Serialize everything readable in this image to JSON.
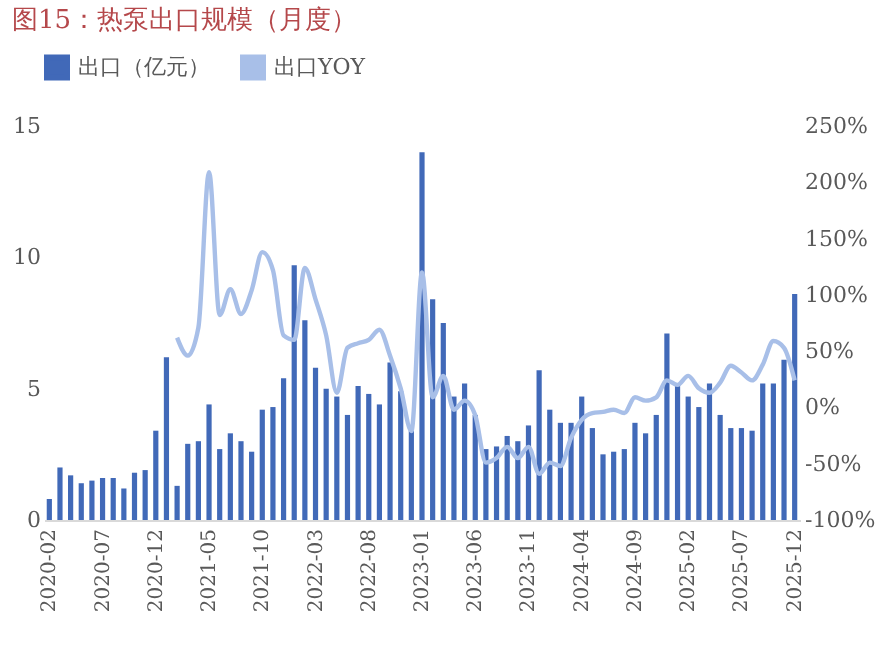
{
  "chart_data": {
    "type": "bar",
    "title": "图15：热泵出口规模（月度）",
    "categories": [
      "2020-02",
      null,
      null,
      null,
      null,
      "2020-07",
      null,
      null,
      null,
      null,
      "2020-12",
      null,
      null,
      null,
      null,
      "2021-05",
      null,
      null,
      null,
      null,
      "2021-10",
      null,
      null,
      null,
      null,
      "2022-03",
      null,
      null,
      null,
      null,
      "2022-08",
      null,
      null,
      null,
      null,
      "2023-01",
      null,
      null,
      null,
      null,
      "2023-06",
      null,
      null,
      null,
      null,
      "2023-11",
      null,
      null,
      null,
      null,
      "2024-04",
      null,
      null,
      null,
      null,
      "2024-09",
      null,
      null,
      null,
      null,
      "2025-02",
      null,
      null,
      null,
      null,
      "2025-07",
      null,
      null,
      null,
      null,
      "2025-12"
    ],
    "series": [
      {
        "name": "出口（亿元）",
        "color": "#4169b8",
        "values": [
          0.8,
          2.0,
          1.7,
          1.4,
          1.5,
          1.6,
          1.6,
          1.2,
          1.8,
          1.9,
          3.4,
          6.2,
          1.3,
          2.9,
          3.0,
          4.4,
          2.7,
          3.3,
          3.0,
          2.6,
          4.2,
          4.3,
          5.4,
          9.7,
          7.6,
          5.8,
          5.0,
          4.7,
          4.0,
          5.1,
          4.8,
          4.4,
          6.0,
          4.9,
          3.4,
          14.0,
          8.4,
          7.5,
          4.7,
          5.2,
          4.0,
          2.7,
          2.8,
          3.2,
          3.0,
          3.6,
          5.7,
          4.2,
          3.7,
          3.7,
          4.7,
          3.5,
          2.5,
          2.6,
          2.7,
          3.7,
          3.3,
          4.0,
          7.1,
          5.2,
          4.7,
          4.3,
          5.2,
          4.0,
          3.5,
          3.5,
          3.4,
          5.2,
          5.2,
          6.1,
          8.6
        ]
      },
      {
        "name": "出口YOY",
        "type": "line",
        "axis": "y2",
        "color": "#a8bfe8",
        "values": [
          null,
          null,
          null,
          null,
          null,
          null,
          null,
          null,
          null,
          null,
          null,
          null,
          62,
          46,
          71,
          209,
          82,
          105,
          83,
          104,
          138,
          122,
          64,
          60,
          124,
          96,
          64,
          13,
          53,
          57,
          60,
          69,
          46,
          17,
          -21,
          120,
          9,
          28,
          -2,
          6,
          -7,
          -49,
          -45,
          -35,
          -45,
          -35,
          -59,
          -49,
          -52,
          -27,
          -11,
          -5,
          -4,
          -2,
          -5,
          9,
          6,
          9,
          24,
          20,
          28,
          17,
          13,
          22,
          37,
          31,
          24,
          38,
          59,
          53,
          24
        ]
      }
    ],
    "ylim": [
      0,
      15
    ],
    "yticks": [
      0,
      5,
      10,
      15
    ],
    "y2lim": [
      -100,
      250
    ],
    "y2ticks": [
      {
        "value": -100,
        "label": "-100%"
      },
      {
        "value": -50,
        "label": "-50%"
      },
      {
        "value": 0,
        "label": "0%"
      },
      {
        "value": 50,
        "label": "50%"
      },
      {
        "value": 100,
        "label": "100%"
      },
      {
        "value": 150,
        "label": "150%"
      },
      {
        "value": 200,
        "label": "200%"
      },
      {
        "value": 250,
        "label": "250%"
      }
    ],
    "legend": "top"
  }
}
